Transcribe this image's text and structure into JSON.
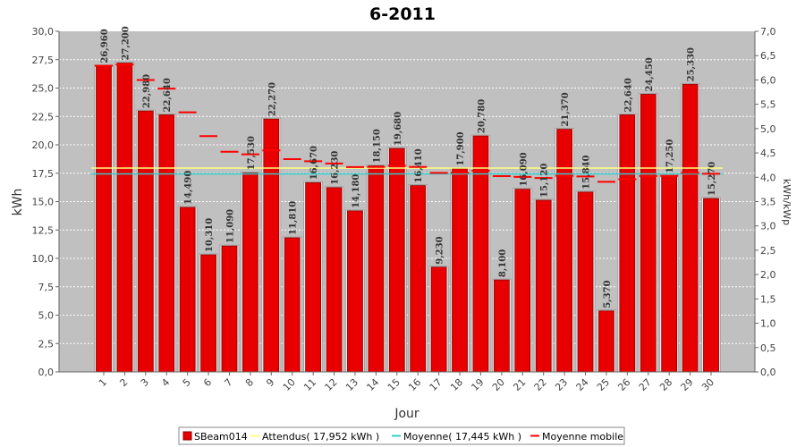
{
  "chart_data": {
    "type": "bar",
    "title": "6-2011",
    "xlabel": "Jour",
    "ylabel": "kWh",
    "y2label": "kWh/kWp",
    "ylim": [
      0,
      30
    ],
    "y_ticks": [
      "0,0",
      "2,5",
      "5,0",
      "7,5",
      "10,0",
      "12,5",
      "15,0",
      "17,5",
      "20,0",
      "22,5",
      "25,0",
      "27,5",
      "30,0"
    ],
    "y2lim": [
      0,
      7.0
    ],
    "y2_ticks": [
      "0,0",
      "0,5",
      "1,0",
      "1,5",
      "2,0",
      "2,5",
      "3,0",
      "3,5",
      "4,0",
      "4,5",
      "5,0",
      "5,5",
      "6,0",
      "6,5",
      "7,0"
    ],
    "grid": true,
    "legend_position": "bottom",
    "colors": {
      "bar": "#e80000",
      "bar_edge": "#8a0000",
      "plot_bg": "#c0c0c0",
      "attendus": "#ffff80",
      "moyenne": "#33cccc",
      "mobile": "#ff0000"
    },
    "categories": [
      "1",
      "2",
      "3",
      "4",
      "5",
      "6",
      "7",
      "8",
      "9",
      "10",
      "11",
      "12",
      "13",
      "14",
      "15",
      "16",
      "17",
      "18",
      "19",
      "20",
      "21",
      "22",
      "23",
      "24",
      "25",
      "26",
      "27",
      "28",
      "29",
      "30"
    ],
    "series": [
      {
        "name": "SBeam014",
        "values": [
          26.96,
          27.2,
          22.98,
          22.64,
          14.49,
          10.31,
          11.09,
          17.53,
          22.27,
          11.81,
          16.67,
          16.23,
          14.18,
          18.15,
          19.68,
          16.41,
          9.23,
          17.9,
          20.78,
          8.1,
          16.09,
          15.12,
          21.37,
          15.84,
          5.37,
          22.64,
          24.45,
          17.25,
          25.33,
          15.27
        ],
        "labels": [
          "26,960",
          "27,200",
          "22,980",
          "22,640",
          "14,490",
          "10,310",
          "11,090",
          "17,530",
          "22,270",
          "11,810",
          "16,670",
          "16,230",
          "14,180",
          "18,150",
          "19,680",
          "16,410",
          "9,230",
          "17,900",
          "20,780",
          "8,100",
          "16,090",
          "15,120",
          "21,370",
          "15,840",
          "5,370",
          "22,640",
          "24,450",
          "17,250",
          "25,330",
          "15,270"
        ]
      },
      {
        "name": "Attendus( 17,952 kWh )",
        "value": 17.952
      },
      {
        "name": "Moyenne( 17,445 kWh )",
        "value": 17.445
      },
      {
        "name": "Moyenne mobile",
        "values": [
          26.96,
          27.08,
          25.71,
          24.95,
          22.86,
          20.77,
          19.39,
          19.16,
          19.51,
          18.74,
          18.55,
          18.36,
          18.04,
          18.05,
          18.16,
          18.05,
          17.53,
          17.55,
          17.72,
          17.24,
          17.18,
          17.08,
          17.27,
          17.21,
          16.74,
          16.97,
          17.25,
          17.26,
          17.54,
          17.45
        ]
      }
    ]
  }
}
